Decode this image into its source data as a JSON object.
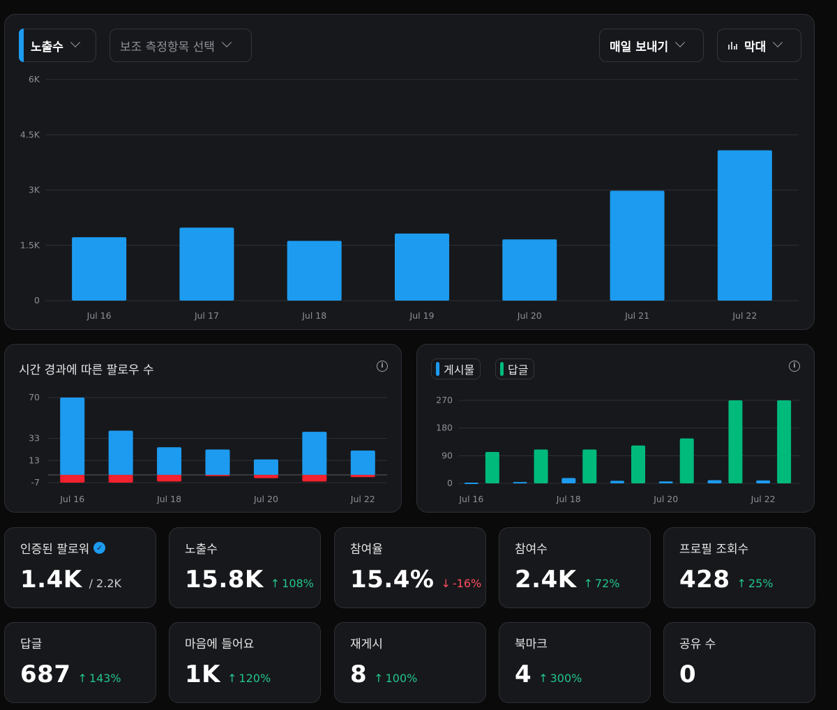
{
  "toolbar": {
    "metric_label": "노출수",
    "secondary_placeholder": "보조 측정항목 선택",
    "period_label": "매일 보내기",
    "chart_type_label": "막대"
  },
  "colors": {
    "blue": "#1d9bf0",
    "green": "#00ba7c",
    "red": "#f4212e",
    "up": "#22c58a",
    "down": "#ff4d5e"
  },
  "followers_card": {
    "title": "시간 경과에 따른 팔로우 수"
  },
  "posts_card": {
    "legend_posts": "게시물",
    "legend_replies": "답글"
  },
  "chart_data": [
    {
      "type": "bar",
      "categories": [
        "Jul 16",
        "Jul 17",
        "Jul 18",
        "Jul 19",
        "Jul 20",
        "Jul 21",
        "Jul 22"
      ],
      "values": [
        1720,
        1980,
        1620,
        1820,
        1660,
        2980,
        4080
      ],
      "yticks": [
        "0",
        "1.5K",
        "3K",
        "4.5K",
        "6K"
      ],
      "ytick_values": [
        0,
        1500,
        3000,
        4500,
        6000
      ],
      "ylim": [
        0,
        6000
      ],
      "grid": true
    },
    {
      "type": "bar",
      "title": "시간 경과에 따른 팔로우 수",
      "categories": [
        "Jul 16",
        "Jul 17",
        "Jul 18",
        "Jul 19",
        "Jul 20",
        "Jul 21",
        "Jul 22"
      ],
      "xtick_labels": [
        "Jul 16",
        "",
        "Jul 18",
        "",
        "Jul 20",
        "",
        "Jul 22"
      ],
      "series": [
        {
          "color": "#1d9bf0",
          "values": [
            70,
            40,
            25,
            23,
            14,
            39,
            22
          ]
        },
        {
          "color": "#f4212e",
          "values": [
            -7,
            -7,
            -6,
            -1,
            -3,
            -6,
            -2
          ]
        }
      ],
      "yticks": [
        "70",
        "33",
        "13",
        "-7"
      ],
      "ytick_values": [
        70,
        33,
        13,
        -7
      ],
      "ylim": [
        -7,
        70
      ],
      "grid": true
    },
    {
      "type": "bar",
      "categories": [
        "Jul 16",
        "Jul 17",
        "Jul 18",
        "Jul 19",
        "Jul 20",
        "Jul 21",
        "Jul 22"
      ],
      "xtick_labels": [
        "Jul 16",
        "",
        "Jul 18",
        "",
        "Jul 20",
        "",
        "Jul 22"
      ],
      "series": [
        {
          "name": "게시물",
          "color": "#1d9bf0",
          "values": [
            0,
            2,
            15,
            6,
            4,
            8,
            7
          ]
        },
        {
          "name": "답글",
          "color": "#00ba7c",
          "values": [
            102,
            110,
            110,
            123,
            146,
            270,
            270
          ]
        }
      ],
      "yticks": [
        "0",
        "90",
        "180",
        "270"
      ],
      "ytick_values": [
        0,
        90,
        180,
        270
      ],
      "ylim": [
        0,
        270
      ],
      "grid": true
    }
  ],
  "stats_row1": [
    {
      "label": "인증된 팔로워",
      "value": "1.4K",
      "sub": "/ 2.2K",
      "verified": true
    },
    {
      "label": "노출수",
      "value": "15.8K",
      "change": "108%",
      "dir": "up"
    },
    {
      "label": "참여율",
      "value": "15.4%",
      "change": "-16%",
      "dir": "down"
    },
    {
      "label": "참여수",
      "value": "2.4K",
      "change": "72%",
      "dir": "up"
    },
    {
      "label": "프로필 조회수",
      "value": "428",
      "change": "25%",
      "dir": "up"
    }
  ],
  "stats_row2": [
    {
      "label": "답글",
      "value": "687",
      "change": "143%",
      "dir": "up"
    },
    {
      "label": "마음에 들어요",
      "value": "1K",
      "change": "120%",
      "dir": "up"
    },
    {
      "label": "재게시",
      "value": "8",
      "change": "100%",
      "dir": "up"
    },
    {
      "label": "북마크",
      "value": "4",
      "change": "300%",
      "dir": "up"
    },
    {
      "label": "공유 수",
      "value": "0"
    }
  ]
}
